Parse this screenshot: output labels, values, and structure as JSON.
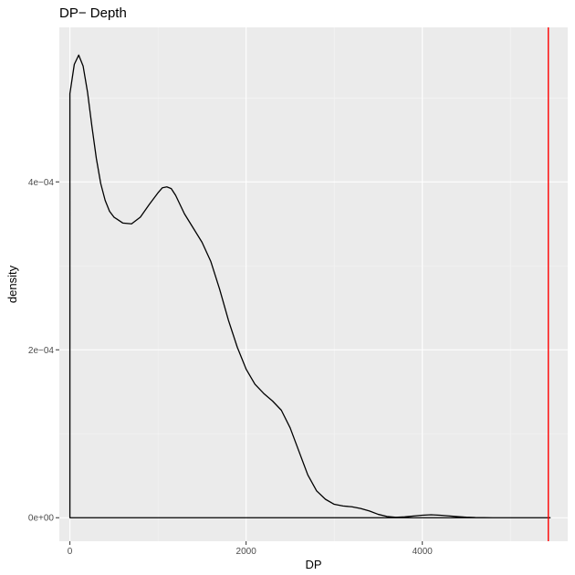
{
  "chart_data": {
    "type": "area",
    "title": "DP− Depth",
    "xlabel": "DP",
    "ylabel": "density",
    "xlim": [
      -120,
      5650
    ],
    "ylim": [
      -2.8e-05,
      0.000584
    ],
    "x_ticks": [
      0,
      2000,
      4000
    ],
    "x_tick_labels": [
      "0",
      "2000",
      "4000"
    ],
    "y_ticks": [
      0,
      0.0002,
      0.0004
    ],
    "y_tick_labels": [
      "0e+00",
      "2e−04",
      "4e−04"
    ],
    "grid": true,
    "background": "#EBEBEB",
    "line_color": "#000000",
    "series": [
      {
        "x": [
          0,
          50,
          100,
          150,
          200,
          250,
          300,
          350,
          400,
          450,
          500,
          600,
          700,
          800,
          900,
          1000,
          1050,
          1100,
          1150,
          1200,
          1300,
          1400,
          1500,
          1600,
          1700,
          1800,
          1900,
          2000,
          2100,
          2200,
          2300,
          2400,
          2500,
          2600,
          2700,
          2800,
          2900,
          3000,
          3100,
          3200,
          3300,
          3400,
          3500,
          3600,
          3700,
          3800,
          3900,
          4000,
          4100,
          4200,
          4300,
          4400,
          4500,
          4600,
          4700,
          4800,
          5000,
          5200,
          5450
        ],
        "y": [
          0.000505,
          0.00054,
          0.000551,
          0.000538,
          0.000507,
          0.000466,
          0.000428,
          0.000398,
          0.000378,
          0.000365,
          0.000358,
          0.000351,
          0.00035,
          0.000358,
          0.000373,
          0.000387,
          0.000393,
          0.000394,
          0.000392,
          0.000384,
          0.000362,
          0.000345,
          0.000328,
          0.000305,
          0.000272,
          0.000235,
          0.000203,
          0.000177,
          0.000159,
          0.000148,
          0.000139,
          0.000128,
          0.000107,
          7.9e-05,
          5.1e-05,
          3.2e-05,
          2.2e-05,
          1.6e-05,
          1.4e-05,
          1.3e-05,
          1.1e-05,
          8e-06,
          4e-06,
          1.5e-06,
          5e-07,
          1e-06,
          2e-06,
          3e-06,
          3.5e-06,
          3e-06,
          2.2e-06,
          1.3e-06,
          6e-07,
          2e-07,
          1e-07,
          0,
          0,
          0,
          0
        ]
      }
    ],
    "vline": {
      "x": 5430,
      "color": "#FF0000"
    }
  }
}
